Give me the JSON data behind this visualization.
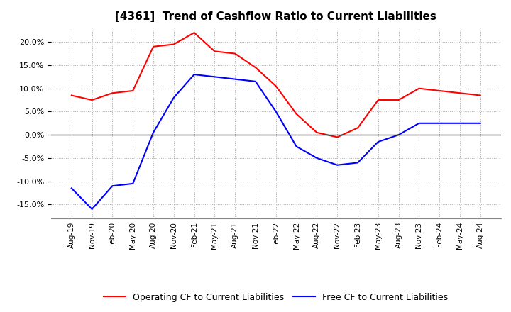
{
  "title": "[4361]  Trend of Cashflow Ratio to Current Liabilities",
  "x_labels": [
    "Aug-19",
    "Nov-19",
    "Feb-20",
    "May-20",
    "Aug-20",
    "Nov-20",
    "Feb-21",
    "May-21",
    "Aug-21",
    "Nov-21",
    "Feb-22",
    "May-22",
    "Aug-22",
    "Nov-22",
    "Feb-23",
    "May-23",
    "Aug-23",
    "Nov-23",
    "Feb-24",
    "May-24",
    "Aug-24"
  ],
  "operating_cf": [
    8.5,
    7.5,
    9.0,
    9.5,
    19.0,
    19.5,
    22.0,
    18.0,
    17.5,
    14.5,
    10.5,
    4.5,
    0.5,
    -0.5,
    1.5,
    7.5,
    7.5,
    10.0,
    9.5,
    9.0,
    8.5
  ],
  "free_cf": [
    -11.5,
    -16.0,
    -11.0,
    -10.5,
    0.5,
    8.0,
    13.0,
    12.5,
    12.0,
    11.5,
    5.0,
    -2.5,
    -5.0,
    -6.5,
    -6.0,
    -1.5,
    0.0,
    2.5,
    2.5,
    2.5,
    2.5
  ],
  "ylim": [
    -18,
    23
  ],
  "yticks": [
    -15,
    -10,
    -5,
    0,
    5,
    10,
    15,
    20
  ],
  "operating_color": "#ff0000",
  "free_color": "#0000ff",
  "grid_color": "#aaaaaa",
  "background_color": "#ffffff",
  "title_fontsize": 11,
  "legend_entries": [
    "Operating CF to Current Liabilities",
    "Free CF to Current Liabilities"
  ]
}
